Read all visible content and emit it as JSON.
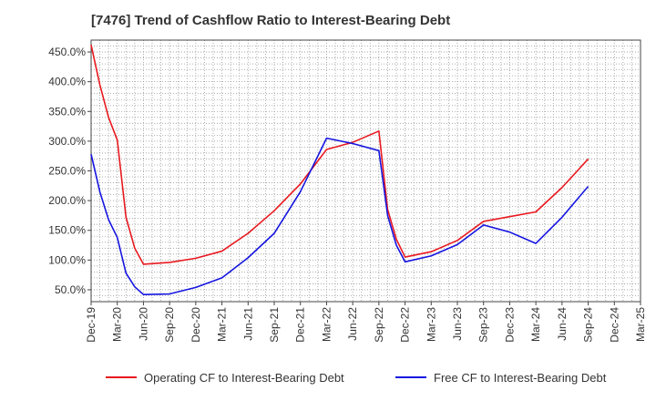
{
  "chart_data": {
    "type": "line",
    "title": "[7476]  Trend of Cashflow Ratio to Interest-Bearing Debt",
    "xlabel": "",
    "ylabel": "",
    "x_ticks": [
      "Dec-19",
      "Mar-20",
      "Jun-20",
      "Sep-20",
      "Dec-20",
      "Mar-21",
      "Jun-21",
      "Sep-21",
      "Dec-21",
      "Mar-22",
      "Jun-22",
      "Sep-22",
      "Dec-22",
      "Mar-23",
      "Jun-23",
      "Sep-23",
      "Dec-23",
      "Mar-24",
      "Jun-24",
      "Sep-24",
      "Dec-24",
      "Mar-25"
    ],
    "xlim": [
      "2019-12",
      "2025-03"
    ],
    "ylim": [
      30,
      470
    ],
    "y_ticks": [
      50,
      100,
      150,
      200,
      250,
      300,
      350,
      400,
      450
    ],
    "y_tick_labels": [
      "50.0%",
      "100.0%",
      "150.0%",
      "200.0%",
      "250.0%",
      "300.0%",
      "350.0%",
      "400.0%",
      "450.0%"
    ],
    "grid": true,
    "legend_position": "bottom",
    "series": [
      {
        "name": "Operating CF to Interest-Bearing Debt",
        "color": "#e8191f",
        "points": [
          {
            "x": "2019-12",
            "y": 462
          },
          {
            "x": "2020-01",
            "y": 395
          },
          {
            "x": "2020-02",
            "y": 340
          },
          {
            "x": "2020-03",
            "y": 302
          },
          {
            "x": "2020-04",
            "y": 172
          },
          {
            "x": "2020-05",
            "y": 120
          },
          {
            "x": "2020-06",
            "y": 93
          },
          {
            "x": "2020-09",
            "y": 96
          },
          {
            "x": "2020-12",
            "y": 103
          },
          {
            "x": "2021-03",
            "y": 115
          },
          {
            "x": "2021-06",
            "y": 145
          },
          {
            "x": "2021-09",
            "y": 183
          },
          {
            "x": "2021-12",
            "y": 228
          },
          {
            "x": "2022-03",
            "y": 286
          },
          {
            "x": "2022-06",
            "y": 298
          },
          {
            "x": "2022-09",
            "y": 317
          },
          {
            "x": "2022-10",
            "y": 185
          },
          {
            "x": "2022-11",
            "y": 135
          },
          {
            "x": "2022-12",
            "y": 105
          },
          {
            "x": "2023-03",
            "y": 114
          },
          {
            "x": "2023-06",
            "y": 133
          },
          {
            "x": "2023-09",
            "y": 165
          },
          {
            "x": "2023-12",
            "y": 173
          },
          {
            "x": "2024-03",
            "y": 181
          },
          {
            "x": "2024-06",
            "y": 222
          },
          {
            "x": "2024-09",
            "y": 270
          }
        ]
      },
      {
        "name": "Free CF to Interest-Bearing Debt",
        "color": "#1515e0",
        "points": [
          {
            "x": "2019-12",
            "y": 278
          },
          {
            "x": "2020-01",
            "y": 215
          },
          {
            "x": "2020-02",
            "y": 168
          },
          {
            "x": "2020-03",
            "y": 138
          },
          {
            "x": "2020-04",
            "y": 78
          },
          {
            "x": "2020-05",
            "y": 55
          },
          {
            "x": "2020-06",
            "y": 42
          },
          {
            "x": "2020-09",
            "y": 43
          },
          {
            "x": "2020-12",
            "y": 54
          },
          {
            "x": "2021-03",
            "y": 70
          },
          {
            "x": "2021-06",
            "y": 104
          },
          {
            "x": "2021-09",
            "y": 145
          },
          {
            "x": "2021-12",
            "y": 215
          },
          {
            "x": "2022-03",
            "y": 305
          },
          {
            "x": "2022-06",
            "y": 296
          },
          {
            "x": "2022-09",
            "y": 284
          },
          {
            "x": "2022-10",
            "y": 175
          },
          {
            "x": "2022-11",
            "y": 125
          },
          {
            "x": "2022-12",
            "y": 97
          },
          {
            "x": "2023-03",
            "y": 107
          },
          {
            "x": "2023-06",
            "y": 126
          },
          {
            "x": "2023-09",
            "y": 159
          },
          {
            "x": "2023-12",
            "y": 147
          },
          {
            "x": "2024-03",
            "y": 128
          },
          {
            "x": "2024-06",
            "y": 172
          },
          {
            "x": "2024-09",
            "y": 224
          }
        ]
      }
    ]
  }
}
